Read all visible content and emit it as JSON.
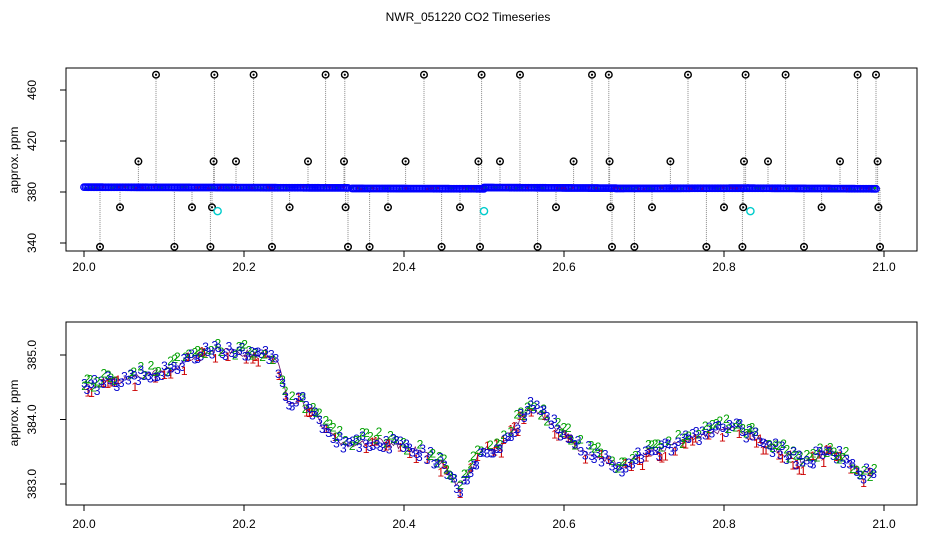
{
  "figure": {
    "title": "NWR_051220  CO2 Timeseries"
  },
  "chart_data": [
    {
      "type": "scatter",
      "panel": "top",
      "ylabel": "approx. ppm",
      "xlabel": "",
      "xlim": [
        20.0,
        21.0
      ],
      "ylim": [
        332,
        475
      ],
      "x_ticks": [
        "20.0",
        "20.2",
        "20.4",
        "20.6",
        "20.8",
        "21.0"
      ],
      "y_ticks": [
        "340",
        "380",
        "420",
        "460"
      ],
      "baseline": {
        "description_color": "#0000ff",
        "segments": [
          {
            "x": [
              20.0,
              20.33
            ],
            "y": [
              383.8,
              383.2
            ]
          },
          {
            "x": [
              20.335,
              20.5
            ],
            "y": [
              382.8,
              382.5
            ]
          },
          {
            "x": [
              20.5,
              20.665
            ],
            "y": [
              383.5,
              383.0
            ]
          },
          {
            "x": [
              20.665,
              20.83
            ],
            "y": [
              382.8,
              383.0
            ]
          },
          {
            "x": [
              20.83,
              20.99
            ],
            "y": [
              383.0,
              382.5
            ]
          }
        ]
      },
      "outliers": [
        {
          "x": 20.02,
          "y": 337
        },
        {
          "x": 20.045,
          "y": 368
        },
        {
          "x": 20.068,
          "y": 404
        },
        {
          "x": 20.09,
          "y": 472
        },
        {
          "x": 20.113,
          "y": 337
        },
        {
          "x": 20.135,
          "y": 368
        },
        {
          "x": 20.158,
          "y": 337
        },
        {
          "x": 20.16,
          "y": 368
        },
        {
          "x": 20.162,
          "y": 404
        },
        {
          "x": 20.163,
          "y": 472
        },
        {
          "x": 20.19,
          "y": 404
        },
        {
          "x": 20.212,
          "y": 472
        },
        {
          "x": 20.235,
          "y": 337
        },
        {
          "x": 20.257,
          "y": 368
        },
        {
          "x": 20.28,
          "y": 404
        },
        {
          "x": 20.302,
          "y": 472
        },
        {
          "x": 20.325,
          "y": 404
        },
        {
          "x": 20.326,
          "y": 472
        },
        {
          "x": 20.327,
          "y": 368
        },
        {
          "x": 20.33,
          "y": 337
        },
        {
          "x": 20.357,
          "y": 337
        },
        {
          "x": 20.38,
          "y": 368
        },
        {
          "x": 20.402,
          "y": 404
        },
        {
          "x": 20.425,
          "y": 472
        },
        {
          "x": 20.447,
          "y": 337
        },
        {
          "x": 20.47,
          "y": 368
        },
        {
          "x": 20.493,
          "y": 404
        },
        {
          "x": 20.495,
          "y": 337
        },
        {
          "x": 20.497,
          "y": 472
        },
        {
          "x": 20.52,
          "y": 404
        },
        {
          "x": 20.545,
          "y": 472
        },
        {
          "x": 20.567,
          "y": 337
        },
        {
          "x": 20.59,
          "y": 368
        },
        {
          "x": 20.612,
          "y": 404
        },
        {
          "x": 20.635,
          "y": 472
        },
        {
          "x": 20.656,
          "y": 472
        },
        {
          "x": 20.657,
          "y": 404
        },
        {
          "x": 20.658,
          "y": 368
        },
        {
          "x": 20.66,
          "y": 337
        },
        {
          "x": 20.688,
          "y": 337
        },
        {
          "x": 20.71,
          "y": 368
        },
        {
          "x": 20.733,
          "y": 404
        },
        {
          "x": 20.755,
          "y": 472
        },
        {
          "x": 20.778,
          "y": 337
        },
        {
          "x": 20.8,
          "y": 368
        },
        {
          "x": 20.823,
          "y": 337
        },
        {
          "x": 20.824,
          "y": 368
        },
        {
          "x": 20.825,
          "y": 404
        },
        {
          "x": 20.827,
          "y": 472
        },
        {
          "x": 20.855,
          "y": 404
        },
        {
          "x": 20.877,
          "y": 472
        },
        {
          "x": 20.9,
          "y": 337
        },
        {
          "x": 20.922,
          "y": 368
        },
        {
          "x": 20.945,
          "y": 404
        },
        {
          "x": 20.967,
          "y": 472
        },
        {
          "x": 20.99,
          "y": 472
        },
        {
          "x": 20.992,
          "y": 404
        },
        {
          "x": 20.993,
          "y": 368
        },
        {
          "x": 20.995,
          "y": 337
        }
      ],
      "cyan_points": [
        {
          "x": 20.167,
          "y": 365
        },
        {
          "x": 20.5,
          "y": 365
        },
        {
          "x": 20.833,
          "y": 365
        }
      ],
      "colors": {
        "baseline": "#0000ff",
        "accent_red": "#dd0000",
        "accent_green": "#00aa00",
        "outlier": "#000000",
        "cyan": "#00cccc",
        "drop_lines": "#888888"
      }
    },
    {
      "type": "scatter",
      "panel": "bottom",
      "ylabel": "approx. ppm",
      "xlabel": "",
      "xlim": [
        20.0,
        21.0
      ],
      "ylim": [
        382.7,
        385.35
      ],
      "x_ticks": [
        "20.0",
        "20.2",
        "20.4",
        "20.6",
        "20.8",
        "21.0"
      ],
      "y_ticks": [
        "383.0",
        "384.0",
        "385.0"
      ],
      "marker_labels": [
        "1",
        "2",
        "3"
      ],
      "series": [
        {
          "name": "1",
          "color": "#cc0000"
        },
        {
          "name": "2",
          "color": "#00a000"
        },
        {
          "name": "3",
          "color": "#0000cc"
        }
      ],
      "trend": {
        "x": [
          20.0,
          20.02,
          20.05,
          20.08,
          20.11,
          20.13,
          20.16,
          20.18,
          20.22,
          20.24,
          20.255,
          20.27,
          20.29,
          20.31,
          20.33,
          20.36,
          20.39,
          20.42,
          20.45,
          20.47,
          20.485,
          20.5,
          20.52,
          20.545,
          20.56,
          20.58,
          20.6,
          20.62,
          20.65,
          20.67,
          20.7,
          20.73,
          20.76,
          20.79,
          20.81,
          20.84,
          20.86,
          20.88,
          20.9,
          20.93,
          20.95,
          20.97,
          20.99
        ],
        "y": [
          384.5,
          384.55,
          384.62,
          384.7,
          384.78,
          384.92,
          385.08,
          385.05,
          385.0,
          384.95,
          384.3,
          384.3,
          384.05,
          383.75,
          383.6,
          383.68,
          383.62,
          383.5,
          383.28,
          382.95,
          383.25,
          383.55,
          383.58,
          384.0,
          384.22,
          384.0,
          383.78,
          383.55,
          383.4,
          383.25,
          383.45,
          383.55,
          383.72,
          383.82,
          383.9,
          383.72,
          383.58,
          383.45,
          383.32,
          383.5,
          383.4,
          383.18,
          383.12
        ]
      }
    }
  ]
}
